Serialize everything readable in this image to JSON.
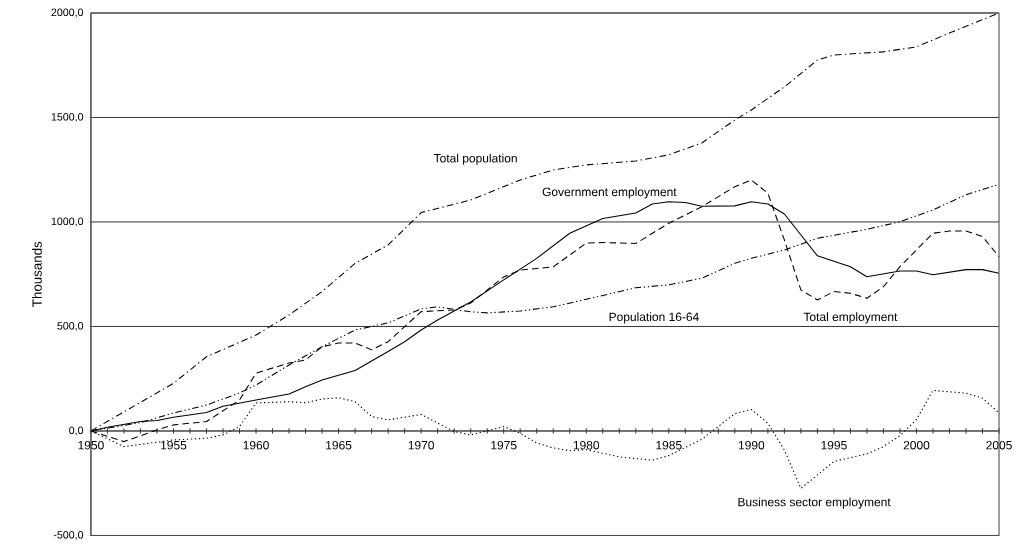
{
  "chart_data": {
    "type": "line",
    "ylabel": "Thousands",
    "xlim": [
      1950,
      2005
    ],
    "ylim": [
      -500,
      2000
    ],
    "xticks": [
      1950,
      1955,
      1960,
      1965,
      1970,
      1975,
      1980,
      1985,
      1990,
      1995,
      2000,
      2005
    ],
    "yticks": [
      {
        "value": -500,
        "label": "-500,0"
      },
      {
        "value": 0,
        "label": "0,0"
      },
      {
        "value": 500,
        "label": "500,0"
      },
      {
        "value": 1000,
        "label": "1000,0"
      },
      {
        "value": 1500,
        "label": "1500,0"
      },
      {
        "value": 2000,
        "label": "2000,0"
      }
    ],
    "grid": "y",
    "marker": "none",
    "series": [
      {
        "name": "Total population",
        "color": "#000000",
        "line_style": "dashdot",
        "x": [
          1950,
          1955,
          1957,
          1960,
          1962,
          1964,
          1966,
          1968,
          1970,
          1973,
          1976,
          1978,
          1980,
          1983,
          1985,
          1987,
          1989,
          1990,
          1992,
          1994,
          1995,
          1998,
          2000,
          2002,
          2005
        ],
        "values": [
          0,
          228,
          355,
          459,
          555,
          667,
          802,
          890,
          1045,
          1105,
          1201,
          1249,
          1273,
          1292,
          1321,
          1378,
          1488,
          1536,
          1646,
          1775,
          1799,
          1814,
          1838,
          1904,
          2000
        ]
      },
      {
        "name": "Government employment",
        "color": "#000000",
        "line_style": "solid",
        "x": [
          1950,
          1951,
          1953,
          1954,
          1955,
          1957,
          1958,
          1960,
          1962,
          1963,
          1964,
          1966,
          1968,
          1969,
          1970,
          1971,
          1973,
          1975,
          1977,
          1979,
          1981,
          1983,
          1984,
          1985,
          1986,
          1987,
          1989,
          1990,
          1991,
          1992,
          1994,
          1996,
          1997,
          1999,
          2000,
          2001,
          2003,
          2004,
          2005
        ],
        "values": [
          0,
          18,
          45,
          50,
          66,
          88,
          118,
          148,
          177,
          212,
          244,
          289,
          380,
          427,
          483,
          531,
          617,
          723,
          826,
          946,
          1017,
          1043,
          1086,
          1097,
          1093,
          1075,
          1077,
          1097,
          1086,
          1038,
          838,
          786,
          738,
          765,
          765,
          747,
          772,
          772,
          755
        ]
      },
      {
        "name": "Population 16-64",
        "color": "#000000",
        "line_style": "dashdotdot",
        "x": [
          1950,
          1953,
          1955,
          1957,
          1959,
          1960,
          1962,
          1964,
          1966,
          1968,
          1970,
          1971,
          1973,
          1974,
          1976,
          1978,
          1980,
          1983,
          1985,
          1987,
          1989,
          1990,
          1992,
          1994,
          1997,
          1999,
          2001,
          2003,
          2005
        ],
        "values": [
          0,
          40,
          86,
          124,
          182,
          220,
          316,
          403,
          483,
          517,
          584,
          594,
          570,
          565,
          574,
          594,
          630,
          685,
          699,
          731,
          802,
          826,
          866,
          922,
          965,
          1001,
          1058,
          1130,
          1180
        ]
      },
      {
        "name": "Total employment",
        "color": "#000000",
        "line_style": "dashed",
        "x": [
          1950,
          1952,
          1954,
          1955,
          1957,
          1959,
          1960,
          1962,
          1963,
          1964,
          1965,
          1966,
          1967,
          1968,
          1969,
          1970,
          1972,
          1973,
          1975,
          1976,
          1978,
          1980,
          1981,
          1983,
          1985,
          1987,
          1989,
          1990,
          1991,
          1992,
          1993,
          1994,
          1995,
          1996,
          1997,
          1998,
          1999,
          2000,
          2001,
          2002,
          2003,
          2004,
          2005
        ],
        "values": [
          0,
          -51,
          5,
          29,
          45,
          148,
          277,
          325,
          340,
          403,
          421,
          421,
          388,
          427,
          499,
          571,
          579,
          612,
          737,
          770,
          785,
          899,
          902,
          897,
          994,
          1073,
          1169,
          1201,
          1137,
          914,
          675,
          627,
          667,
          659,
          635,
          690,
          786,
          866,
          946,
          957,
          957,
          930,
          834
        ]
      },
      {
        "name": "Business sector employment",
        "color": "#000000",
        "line_style": "dotted",
        "x": [
          1950,
          1952,
          1955,
          1957,
          1958,
          1959,
          1960,
          1962,
          1963,
          1964,
          1965,
          1966,
          1967,
          1968,
          1970,
          1972,
          1973,
          1975,
          1976,
          1977,
          1978,
          1979,
          1980,
          1982,
          1984,
          1985,
          1987,
          1989,
          1990,
          1991,
          1992,
          1993,
          1995,
          1997,
          1998,
          1999,
          2000,
          2001,
          2003,
          2004,
          2005
        ],
        "values": [
          0,
          -75,
          -43,
          -35,
          -19,
          21,
          134,
          140,
          135,
          153,
          159,
          140,
          69,
          53,
          79,
          -3,
          -19,
          21,
          -11,
          -57,
          -81,
          -95,
          -89,
          -124,
          -140,
          -118,
          -40,
          83,
          103,
          37,
          -91,
          -275,
          -146,
          -109,
          -75,
          -23,
          55,
          194,
          181,
          157,
          86
        ]
      }
    ]
  }
}
